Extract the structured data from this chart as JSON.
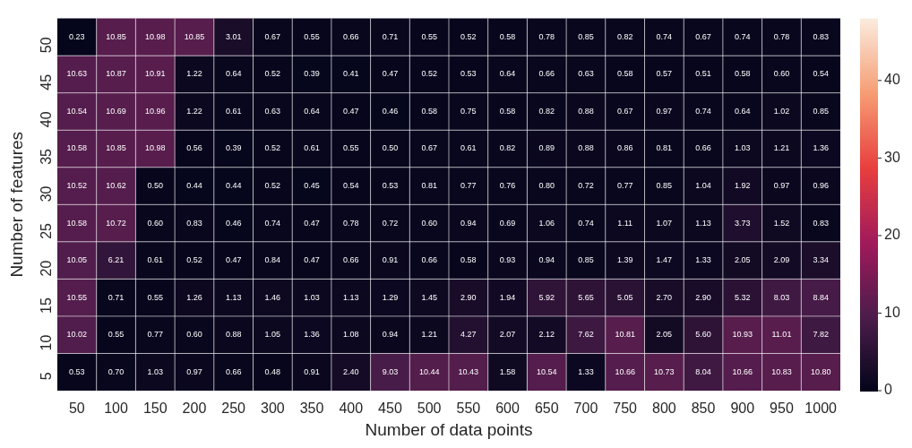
{
  "chart_data": {
    "type": "heatmap",
    "xlabel": "Number of data points",
    "ylabel": "Number of features",
    "categories": [
      "50",
      "100",
      "150",
      "200",
      "250",
      "300",
      "350",
      "400",
      "450",
      "500",
      "550",
      "600",
      "650",
      "700",
      "750",
      "800",
      "850",
      "900",
      "950",
      "1000"
    ],
    "y_categories": [
      "50",
      "45",
      "40",
      "35",
      "30",
      "25",
      "20",
      "15",
      "10",
      "5"
    ],
    "cells": [
      [
        0.23,
        10.85,
        10.98,
        10.85,
        3.01,
        0.67,
        0.55,
        0.66,
        0.71,
        0.55,
        0.52,
        0.58,
        0.78,
        0.85,
        0.82,
        0.74,
        0.67,
        0.74,
        0.78,
        0.83
      ],
      [
        10.63,
        10.87,
        10.91,
        1.22,
        0.64,
        0.52,
        0.39,
        0.41,
        0.47,
        0.52,
        0.53,
        0.64,
        0.66,
        0.63,
        0.58,
        0.57,
        0.51,
        0.58,
        0.6,
        0.54
      ],
      [
        10.54,
        10.69,
        10.96,
        1.22,
        0.61,
        0.63,
        0.64,
        0.47,
        0.46,
        0.58,
        0.75,
        0.58,
        0.82,
        0.88,
        0.67,
        0.97,
        0.74,
        0.64,
        1.02,
        0.85
      ],
      [
        10.58,
        10.85,
        10.98,
        0.56,
        0.39,
        0.52,
        0.61,
        0.55,
        0.5,
        0.67,
        0.61,
        0.82,
        0.89,
        0.88,
        0.86,
        0.81,
        0.66,
        1.03,
        1.21,
        1.36
      ],
      [
        10.52,
        10.62,
        0.5,
        0.44,
        0.44,
        0.52,
        0.45,
        0.54,
        0.53,
        0.81,
        0.77,
        0.76,
        0.8,
        0.72,
        0.77,
        0.85,
        1.04,
        1.92,
        0.97,
        0.96
      ],
      [
        10.58,
        10.72,
        0.6,
        0.83,
        0.46,
        0.74,
        0.47,
        0.78,
        0.72,
        0.6,
        0.94,
        0.69,
        1.06,
        0.74,
        1.11,
        1.07,
        1.13,
        3.73,
        1.52,
        0.83
      ],
      [
        10.05,
        6.21,
        0.61,
        0.52,
        0.47,
        0.84,
        0.47,
        0.66,
        0.91,
        0.66,
        0.58,
        0.93,
        0.94,
        0.85,
        1.39,
        1.47,
        1.33,
        2.05,
        2.09,
        3.34
      ],
      [
        10.55,
        0.71,
        0.55,
        1.26,
        1.13,
        1.46,
        1.03,
        1.13,
        1.29,
        1.45,
        2.9,
        1.94,
        5.92,
        5.65,
        5.05,
        2.7,
        2.9,
        5.32,
        8.03,
        8.84
      ],
      [
        10.02,
        0.55,
        0.77,
        0.6,
        0.88,
        1.05,
        1.36,
        1.08,
        0.94,
        1.21,
        4.27,
        2.07,
        2.12,
        7.62,
        10.81,
        2.05,
        5.6,
        10.93,
        11.01,
        7.82
      ],
      [
        0.53,
        0.7,
        1.03,
        0.97,
        0.66,
        0.48,
        0.91,
        2.4,
        9.03,
        10.44,
        10.43,
        1.58,
        10.54,
        1.33,
        10.66,
        10.73,
        8.04,
        10.66,
        10.83,
        10.8
      ]
    ],
    "cell_labels": [
      [
        "0.23",
        "10.85",
        "10.98",
        "10.85",
        "3.01",
        "0.67",
        "0.55",
        "0.66",
        "0.71",
        "0.55",
        "0.52",
        "0.58",
        "0.78",
        "0.85",
        "0.82",
        "0.74",
        "0.67",
        "0.74",
        "0.78",
        "0.83"
      ],
      [
        "10.63",
        "10.87",
        "10.91",
        "1.22",
        "0.64",
        "0.52",
        "0.39",
        "0.41",
        "0.47",
        "0.52",
        "0.53",
        "0.64",
        "0.66",
        "0.63",
        "0.58",
        "0.57",
        "0.51",
        "0.58",
        "0.60",
        "0.54"
      ],
      [
        "10.54",
        "10.69",
        "10.96",
        "1.22",
        "0.61",
        "0.63",
        "0.64",
        "0.47",
        "0.46",
        "0.58",
        "0.75",
        "0.58",
        "0.82",
        "0.88",
        "0.67",
        "0.97",
        "0.74",
        "0.64",
        "1.02",
        "0.85"
      ],
      [
        "10.58",
        "10.85",
        "10.98",
        "0.56",
        "0.39",
        "0.52",
        "0.61",
        "0.55",
        "0.50",
        "0.67",
        "0.61",
        "0.82",
        "0.89",
        "0.88",
        "0.86",
        "0.81",
        "0.66",
        "1.03",
        "1.21",
        "1.36"
      ],
      [
        "10.52",
        "10.62",
        "0.50",
        "0.44",
        "0.44",
        "0.52",
        "0.45",
        "0.54",
        "0.53",
        "0.81",
        "0.77",
        "0.76",
        "0.80",
        "0.72",
        "0.77",
        "0.85",
        "1.04",
        "1.92",
        "0.97",
        "0.96"
      ],
      [
        "10.58",
        "10.72",
        "0.60",
        "0.83",
        "0.46",
        "0.74",
        "0.47",
        "0.78",
        "0.72",
        "0.60",
        "0.94",
        "0.69",
        "1.06",
        "0.74",
        "1.11",
        "1.07",
        "1.13",
        "3.73",
        "1.52",
        "0.83"
      ],
      [
        "10.05",
        "6.21",
        "0.61",
        "0.52",
        "0.47",
        "0.84",
        "0.47",
        "0.66",
        "0.91",
        "0.66",
        "0.58",
        "0.93",
        "0.94",
        "0.85",
        "1.39",
        "1.47",
        "1.33",
        "2.05",
        "2.09",
        "3.34"
      ],
      [
        "10.55",
        "0.71",
        "0.55",
        "1.26",
        "1.13",
        "1.46",
        "1.03",
        "1.13",
        "1.29",
        "1.45",
        "2.90",
        "1.94",
        "5.92",
        "5.65",
        "5.05",
        "2.70",
        "2.90",
        "5.32",
        "8.03",
        "8.84"
      ],
      [
        "10.02",
        "0.55",
        "0.77",
        "0.60",
        "0.88",
        "1.05",
        "1.36",
        "1.08",
        "0.94",
        "1.21",
        "4.27",
        "2.07",
        "2.12",
        "7.62",
        "10.81",
        "2.05",
        "5.60",
        "10.93",
        "11.01",
        "7.82"
      ],
      [
        "0.53",
        "0.70",
        "1.03",
        "0.97",
        "0.66",
        "0.48",
        "0.91",
        "2.40",
        "9.03",
        "10.44",
        "10.43",
        "1.58",
        "10.54",
        "1.33",
        "10.66",
        "10.73",
        "8.04",
        "10.66",
        "10.83",
        "10.80"
      ]
    ],
    "clim": [
      0,
      48
    ],
    "cticks": [
      0,
      10,
      20,
      30,
      40
    ]
  }
}
